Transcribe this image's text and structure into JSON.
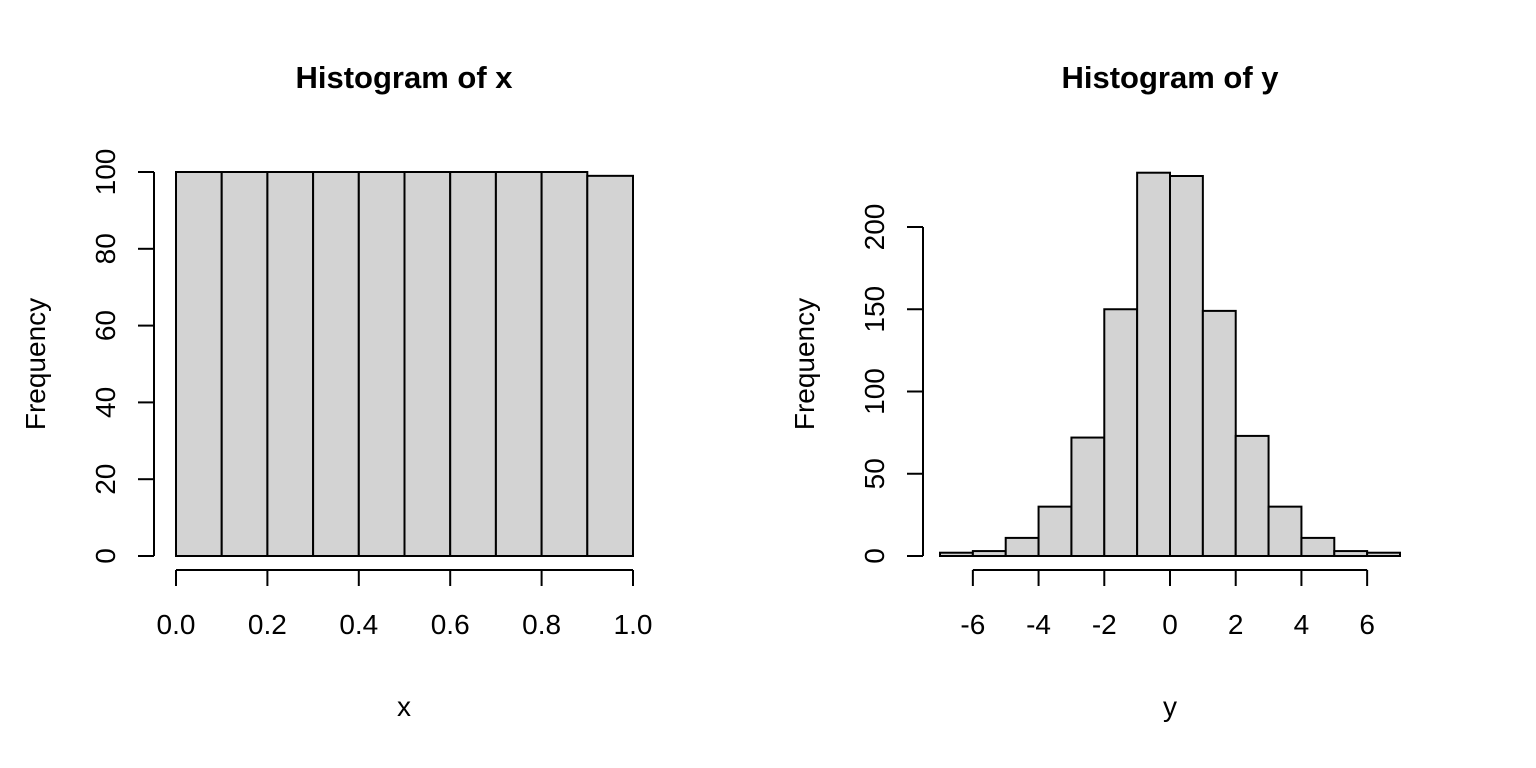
{
  "figure": {
    "background": "#ffffff",
    "bar_fill": "#d3d3d3",
    "bar_stroke": "#000000",
    "text_color": "#000000"
  },
  "chart_data": [
    {
      "type": "bar",
      "title": "Histogram of x",
      "xlabel": "x",
      "ylabel": "Frequency",
      "bin_start": 0.0,
      "bin_width": 0.1,
      "values": [
        100,
        100,
        100,
        100,
        100,
        100,
        100,
        100,
        100,
        99
      ],
      "xlim": [
        0,
        1
      ],
      "ylim": [
        0,
        100
      ],
      "x_ticks": [
        0,
        0.2,
        0.4,
        0.6,
        0.8,
        1
      ],
      "x_tick_labels": [
        "0.0",
        "0.2",
        "0.4",
        "0.6",
        "0.8",
        "1.0"
      ],
      "y_ticks": [
        0,
        20,
        40,
        60,
        80,
        100
      ],
      "y_tick_labels": [
        "0",
        "20",
        "40",
        "60",
        "80",
        "100"
      ],
      "grid": false,
      "legend": null
    },
    {
      "type": "bar",
      "title": "Histogram of y",
      "xlabel": "y",
      "ylabel": "Frequency",
      "bin_start": -7,
      "bin_width": 1,
      "values": [
        2,
        3,
        11,
        30,
        72,
        150,
        233,
        231,
        149,
        73,
        30,
        11,
        3,
        2
      ],
      "xlim": [
        -7,
        7
      ],
      "ylim": [
        0,
        233
      ],
      "x_ticks": [
        -6,
        -4,
        -2,
        0,
        2,
        4,
        6
      ],
      "x_tick_labels": [
        "-6",
        "-4",
        "-2",
        "0",
        "2",
        "4",
        "6"
      ],
      "y_ticks": [
        0,
        50,
        100,
        150,
        200
      ],
      "y_tick_labels": [
        "0",
        "50",
        "100",
        "150",
        "200"
      ],
      "grid": false,
      "legend": null
    }
  ]
}
